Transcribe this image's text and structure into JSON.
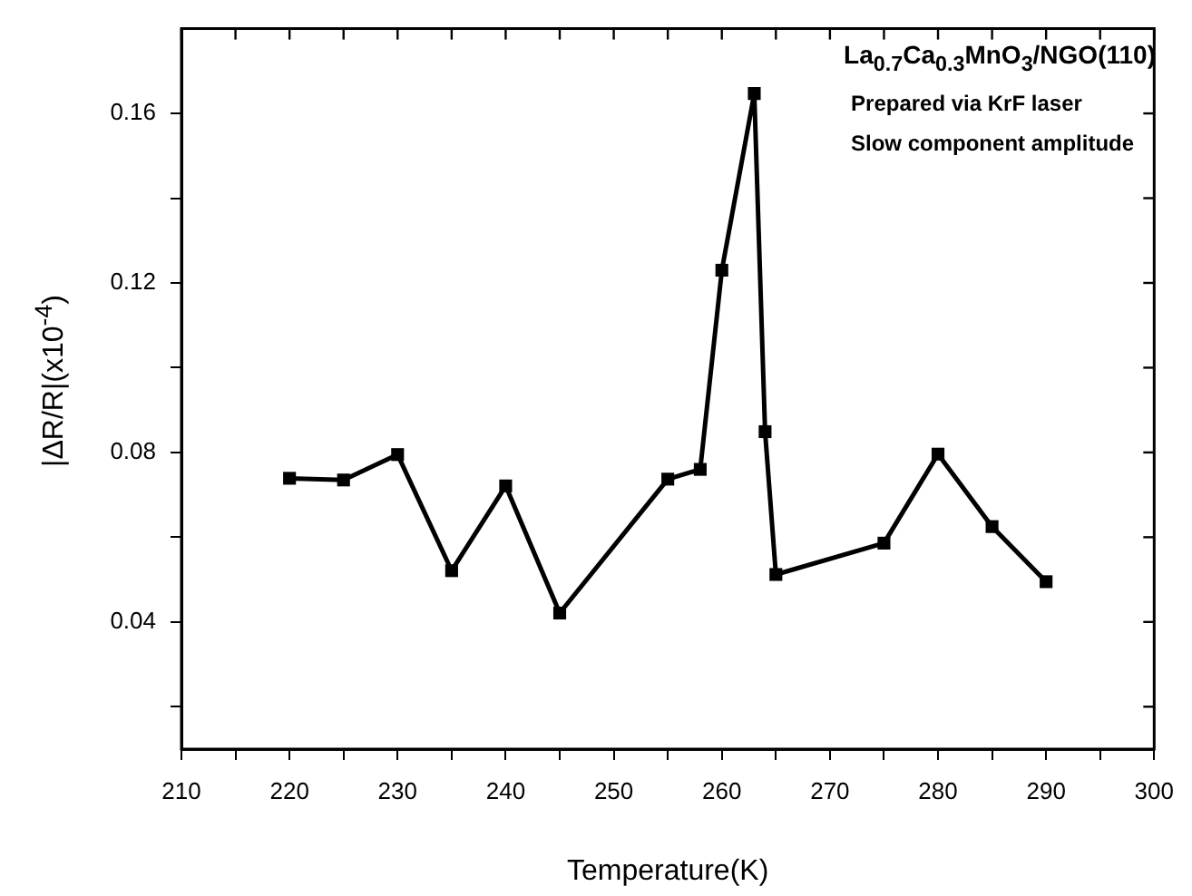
{
  "chart_data": {
    "type": "line",
    "xlabel": "Temperature(K)",
    "ylabel": "|ΔR/R|(x10$^{-4}$)",
    "annotations": [
      "La$_{0.7}$Ca$_{0.3}$MnO$_{3}$/NGO(110)",
      "Prepared via KrF laser",
      "Slow component amplitude"
    ],
    "x": [
      220,
      225,
      230,
      235,
      240,
      245,
      255,
      258,
      260,
      263,
      264,
      265,
      275,
      280,
      285,
      290
    ],
    "series": [
      {
        "color": "#000000",
        "values": [
          0.0739,
          0.0735,
          0.0795,
          0.0521,
          0.0721,
          0.0421,
          0.0737,
          0.076,
          0.123,
          0.1647,
          0.0849,
          0.0512,
          0.0586,
          0.0796,
          0.0625,
          0.0495
        ]
      }
    ],
    "xlim": [
      210,
      300
    ],
    "xticks": [
      210,
      {
        "value": 215,
        "label": null
      },
      220,
      {
        "value": 225,
        "label": null
      },
      230,
      {
        "value": 235,
        "label": null
      },
      240,
      {
        "value": 245,
        "label": null
      },
      250,
      {
        "value": 255,
        "label": null
      },
      260,
      {
        "value": 265,
        "label": null
      },
      270,
      {
        "value": 275,
        "label": null
      },
      280,
      {
        "value": 285,
        "label": null
      },
      290,
      {
        "value": 295,
        "label": null
      },
      300
    ],
    "ylim": [
      0.01,
      0.18
    ],
    "yticks": [
      {
        "value": 0.02,
        "label": null
      },
      0.04,
      {
        "value": 0.06,
        "label": null
      },
      0.08,
      {
        "value": 0.1,
        "label": null
      },
      0.12,
      {
        "value": 0.14,
        "label": null
      },
      0.16
    ],
    "marker": "square",
    "line_style": "solid"
  }
}
